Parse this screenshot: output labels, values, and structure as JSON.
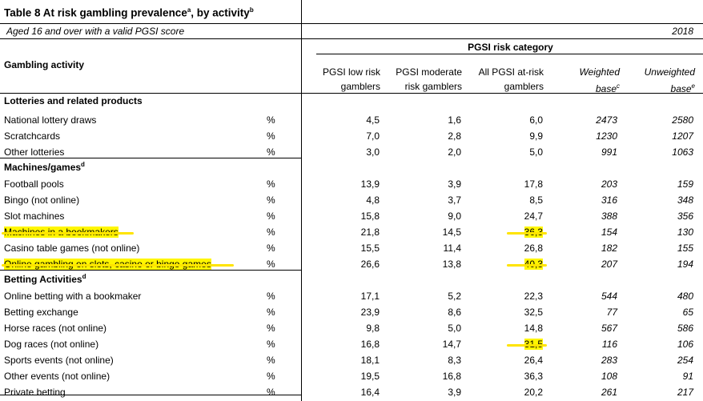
{
  "table": {
    "title": "Table 8 At risk gambling prevalence",
    "title_sup_a": "a",
    "title_mid": ", by activity",
    "title_sup_b": "b",
    "subtitle": "Aged 16 and over with a valid PGSI score",
    "year": "2018",
    "category_header": "PGSI risk category",
    "row_header": "Gambling activity",
    "columns": [
      {
        "line1": "PGSI low risk",
        "line2": "gamblers",
        "sup": ""
      },
      {
        "line1": "PGSI moderate",
        "line2": "risk gamblers",
        "sup": ""
      },
      {
        "line1": "All PGSI at-risk",
        "line2": "gamblers",
        "sup": ""
      },
      {
        "line1": "Weighted",
        "line2": "base",
        "sup": "c"
      },
      {
        "line1": "Unweighted",
        "line2": "base",
        "sup": "e"
      }
    ],
    "highlight_color": "#fff600",
    "rows": [
      {
        "type": "section",
        "label": "Lotteries and related products",
        "sup": ""
      },
      {
        "type": "data",
        "label": "National lottery draws",
        "unit": "%",
        "values": [
          "4,5",
          "1,6",
          "6,0",
          "2473",
          "2580"
        ],
        "hl_label": false,
        "hl_col": -1
      },
      {
        "type": "data",
        "label": "Scratchcards",
        "unit": "%",
        "values": [
          "7,0",
          "2,8",
          "9,9",
          "1230",
          "1207"
        ],
        "hl_label": false,
        "hl_col": -1
      },
      {
        "type": "data",
        "label": "Other lotteries",
        "unit": "%",
        "values": [
          "3,0",
          "2,0",
          "5,0",
          "991",
          "1063"
        ],
        "hl_label": false,
        "hl_col": -1
      },
      {
        "type": "section",
        "label": "Machines/games",
        "sup": "d"
      },
      {
        "type": "data",
        "label": "Football pools",
        "unit": "%",
        "values": [
          "13,9",
          "3,9",
          "17,8",
          "203",
          "159"
        ],
        "hl_label": false,
        "hl_col": -1
      },
      {
        "type": "data",
        "label": "Bingo (not online)",
        "unit": "%",
        "values": [
          "4,8",
          "3,7",
          "8,5",
          "316",
          "348"
        ],
        "hl_label": false,
        "hl_col": -1
      },
      {
        "type": "data",
        "label": "Slot machines",
        "unit": "%",
        "values": [
          "15,8",
          "9,0",
          "24,7",
          "388",
          "356"
        ],
        "hl_label": false,
        "hl_col": -1
      },
      {
        "type": "data",
        "label": "Machines in a bookmakers",
        "unit": "%",
        "values": [
          "21,8",
          "14,5",
          "36,3",
          "154",
          "130"
        ],
        "hl_label": true,
        "hl_col": 2
      },
      {
        "type": "data",
        "label": "Casino table games (not online)",
        "unit": "%",
        "values": [
          "15,5",
          "11,4",
          "26,8",
          "182",
          "155"
        ],
        "hl_label": false,
        "hl_col": -1
      },
      {
        "type": "data",
        "label": "Online gambling on slots, casino or bingo games",
        "unit": "%",
        "values": [
          "26,6",
          "13,8",
          "40,3",
          "207",
          "194"
        ],
        "hl_label": true,
        "hl_col": 2
      },
      {
        "type": "section",
        "label": "Betting Activities",
        "sup": "d"
      },
      {
        "type": "data",
        "label": "Online betting with a bookmaker",
        "unit": "%",
        "values": [
          "17,1",
          "5,2",
          "22,3",
          "544",
          "480"
        ],
        "hl_label": false,
        "hl_col": -1
      },
      {
        "type": "data",
        "label": "Betting exchange",
        "unit": "%",
        "values": [
          "23,9",
          "8,6",
          "32,5",
          "77",
          "65"
        ],
        "hl_label": false,
        "hl_col": -1
      },
      {
        "type": "data",
        "label": "Horse races (not online)",
        "unit": "%",
        "values": [
          "9,8",
          "5,0",
          "14,8",
          "567",
          "586"
        ],
        "hl_label": false,
        "hl_col": -1
      },
      {
        "type": "data",
        "label": "Dog races (not online)",
        "unit": "%",
        "values": [
          "16,8",
          "14,7",
          "31,5",
          "116",
          "106"
        ],
        "hl_label": false,
        "hl_col": 2
      },
      {
        "type": "data",
        "label": "Sports events (not online)",
        "unit": "%",
        "values": [
          "18,1",
          "8,3",
          "26,4",
          "283",
          "254"
        ],
        "hl_label": false,
        "hl_col": -1
      },
      {
        "type": "data",
        "label": "Other events (not online)",
        "unit": "%",
        "values": [
          "19,5",
          "16,8",
          "36,3",
          "108",
          "91"
        ],
        "hl_label": false,
        "hl_col": -1
      },
      {
        "type": "data",
        "label": "Private betting",
        "unit": "%",
        "values": [
          "16,4",
          "3,9",
          "20,2",
          "261",
          "217"
        ],
        "hl_label": false,
        "hl_col": -1
      }
    ]
  }
}
